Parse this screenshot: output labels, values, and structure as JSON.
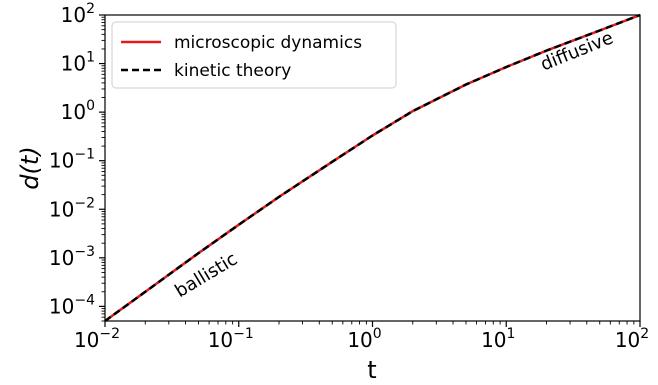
{
  "chart_data": {
    "type": "line",
    "xlabel": "t",
    "ylabel": "d(t)",
    "xscale": "log",
    "yscale": "log",
    "xlim": [
      0.01,
      100
    ],
    "ylim": [
      5e-05,
      100
    ],
    "xticks": [
      {
        "base": "10",
        "exp": "−2"
      },
      {
        "base": "10",
        "exp": "−1"
      },
      {
        "base": "10",
        "exp": "0"
      },
      {
        "base": "10",
        "exp": "1"
      },
      {
        "base": "10",
        "exp": "2"
      }
    ],
    "yticks": [
      {
        "base": "10",
        "exp": "−4"
      },
      {
        "base": "10",
        "exp": "−3"
      },
      {
        "base": "10",
        "exp": "−2"
      },
      {
        "base": "10",
        "exp": "−1"
      },
      {
        "base": "10",
        "exp": "0"
      },
      {
        "base": "10",
        "exp": "1"
      },
      {
        "base": "10",
        "exp": "2"
      }
    ],
    "x": [
      0.01,
      0.02,
      0.05,
      0.1,
      0.2,
      0.5,
      1,
      2,
      5,
      10,
      20,
      50,
      100
    ],
    "series": [
      {
        "name": "microscopic dynamics",
        "color": "#e41a1c",
        "style": "solid",
        "values": [
          5e-05,
          0.0002,
          0.00125,
          0.0048,
          0.018,
          0.095,
          0.33,
          1.05,
          3.7,
          8.5,
          18.5,
          48,
          100
        ]
      },
      {
        "name": "kinetic theory",
        "color": "#000000",
        "style": "dashed",
        "values": [
          5e-05,
          0.0002,
          0.00125,
          0.0048,
          0.018,
          0.095,
          0.33,
          1.05,
          3.7,
          8.5,
          18.5,
          48,
          100
        ]
      }
    ],
    "annotations": [
      {
        "text": "ballistic",
        "x": 0.06,
        "y": 0.00035
      },
      {
        "text": "diffusive",
        "x": 35,
        "y": 14
      }
    ],
    "legend_position": "top-left",
    "grid": false
  }
}
